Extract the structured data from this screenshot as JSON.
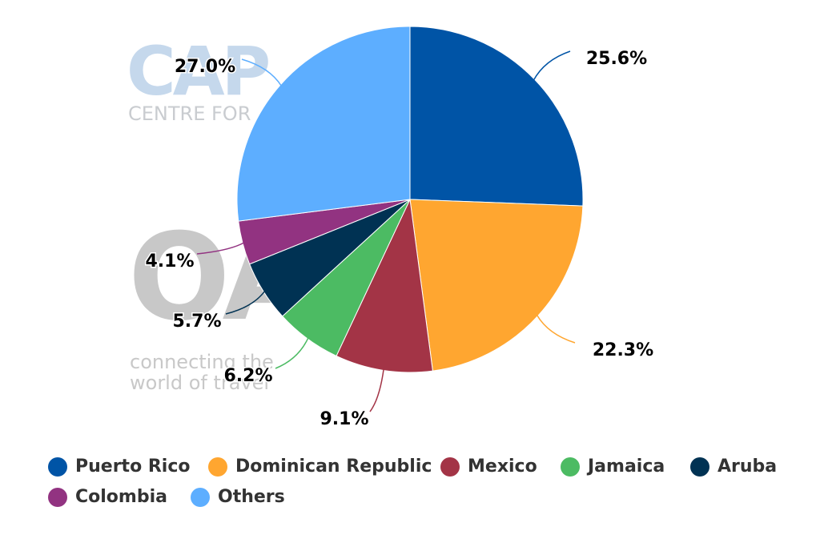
{
  "chart_data": {
    "type": "pie",
    "categories": [
      "Puerto Rico",
      "Dominican Republic",
      "Mexico",
      "Jamaica",
      "Aruba",
      "Colombia",
      "Others"
    ],
    "values": [
      25.6,
      22.3,
      9.1,
      6.2,
      5.7,
      4.1,
      27.0
    ],
    "labels": [
      "25.6%",
      "22.3%",
      "9.1%",
      "6.2%",
      "5.7%",
      "4.1%",
      "27.0%"
    ],
    "colors": [
      "#0054a6",
      "#ffa630",
      "#a33446",
      "#4cbb63",
      "#003253",
      "#923381",
      "#5daeff"
    ],
    "legend_position": "bottom"
  },
  "watermark": {
    "cap": "CAP",
    "centre": "CENTRE FOR",
    "oag": "OAG",
    "tagline1": "connecting the",
    "tagline2": "world of travel"
  }
}
